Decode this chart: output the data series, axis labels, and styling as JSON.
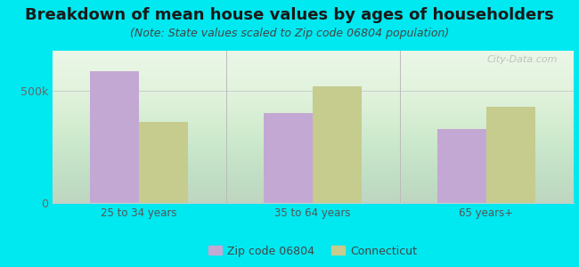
{
  "title": "Breakdown of mean house values by ages of householders",
  "subtitle": "(Note: State values scaled to Zip code 06804 population)",
  "categories": [
    "25 to 34 years",
    "35 to 64 years",
    "65 years+"
  ],
  "zip_values": [
    590000,
    400000,
    330000
  ],
  "state_values": [
    360000,
    520000,
    430000
  ],
  "zip_color": "#c4a8d4",
  "state_color": "#c5cc8e",
  "background_outer": "#00e8f0",
  "background_inner": "#e8f5e0",
  "ylim": [
    0,
    680000
  ],
  "yticks": [
    0,
    500000
  ],
  "ytick_labels": [
    "0",
    "500k"
  ],
  "legend_zip_label": "Zip code 06804",
  "legend_state_label": "Connecticut",
  "bar_width": 0.28,
  "title_fontsize": 13,
  "subtitle_fontsize": 9,
  "watermark": "City-Data.com"
}
